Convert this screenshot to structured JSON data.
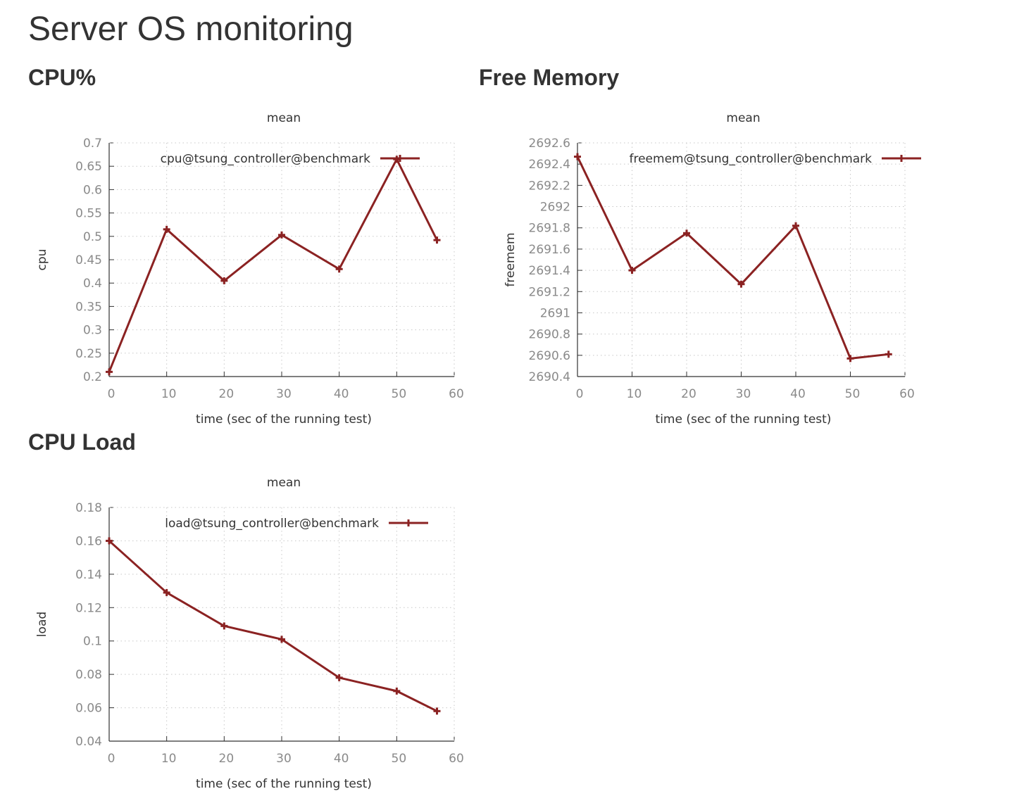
{
  "page": {
    "title": "Server OS monitoring"
  },
  "sections": {
    "cpu": {
      "heading": "CPU%"
    },
    "memory": {
      "heading": "Free Memory"
    },
    "load": {
      "heading": "CPU Load"
    }
  },
  "colors": {
    "series": "#8b2222",
    "grid": "#c8c8c8",
    "axis": "#333333"
  },
  "chart_data": [
    {
      "type": "line",
      "title": "mean",
      "xlabel": "time (sec of the running test)",
      "ylabel": "cpu",
      "xlim": [
        0,
        60
      ],
      "ylim": [
        0.2,
        0.7
      ],
      "xticks": [
        "0",
        "10",
        "20",
        "30",
        "40",
        "50",
        "60"
      ],
      "yticks": [
        "0.2",
        "0.25",
        "0.3",
        "0.35",
        "0.4",
        "0.45",
        "0.5",
        "0.55",
        "0.6",
        "0.65",
        "0.7"
      ],
      "legend_position": "top-right",
      "series": [
        {
          "name": "cpu@tsung_controller@benchmark",
          "x": [
            0,
            10,
            20,
            30,
            40,
            50,
            57
          ],
          "y": [
            0.21,
            0.515,
            0.405,
            0.503,
            0.43,
            0.665,
            0.492
          ]
        }
      ]
    },
    {
      "type": "line",
      "title": "mean",
      "xlabel": "time (sec of the running test)",
      "ylabel": "freemem",
      "xlim": [
        0,
        60
      ],
      "ylim": [
        2690.4,
        2692.6
      ],
      "xticks": [
        "0",
        "10",
        "20",
        "30",
        "40",
        "50",
        "60"
      ],
      "yticks": [
        "2690.4",
        "2690.6",
        "2690.8",
        "2691",
        "2691.2",
        "2691.4",
        "2691.6",
        "2691.8",
        "2692",
        "2692.2",
        "2692.4",
        "2692.6"
      ],
      "legend_position": "top-right",
      "series": [
        {
          "name": "freemem@tsung_controller@benchmark",
          "x": [
            0,
            10,
            20,
            30,
            40,
            50,
            57
          ],
          "y": [
            2692.47,
            2691.4,
            2691.75,
            2691.27,
            2691.82,
            2690.57,
            2690.61
          ]
        }
      ]
    },
    {
      "type": "line",
      "title": "mean",
      "xlabel": "time (sec of the running test)",
      "ylabel": "load",
      "xlim": [
        0,
        60
      ],
      "ylim": [
        0.04,
        0.18
      ],
      "xticks": [
        "0",
        "10",
        "20",
        "30",
        "40",
        "50",
        "60"
      ],
      "yticks": [
        "0.04",
        "0.06",
        "0.08",
        "0.1",
        "0.12",
        "0.14",
        "0.16",
        "0.18"
      ],
      "legend_position": "top-right",
      "series": [
        {
          "name": "load@tsung_controller@benchmark",
          "x": [
            0,
            10,
            20,
            30,
            40,
            50,
            57
          ],
          "y": [
            0.16,
            0.129,
            0.109,
            0.101,
            0.078,
            0.07,
            0.058
          ]
        }
      ]
    }
  ]
}
